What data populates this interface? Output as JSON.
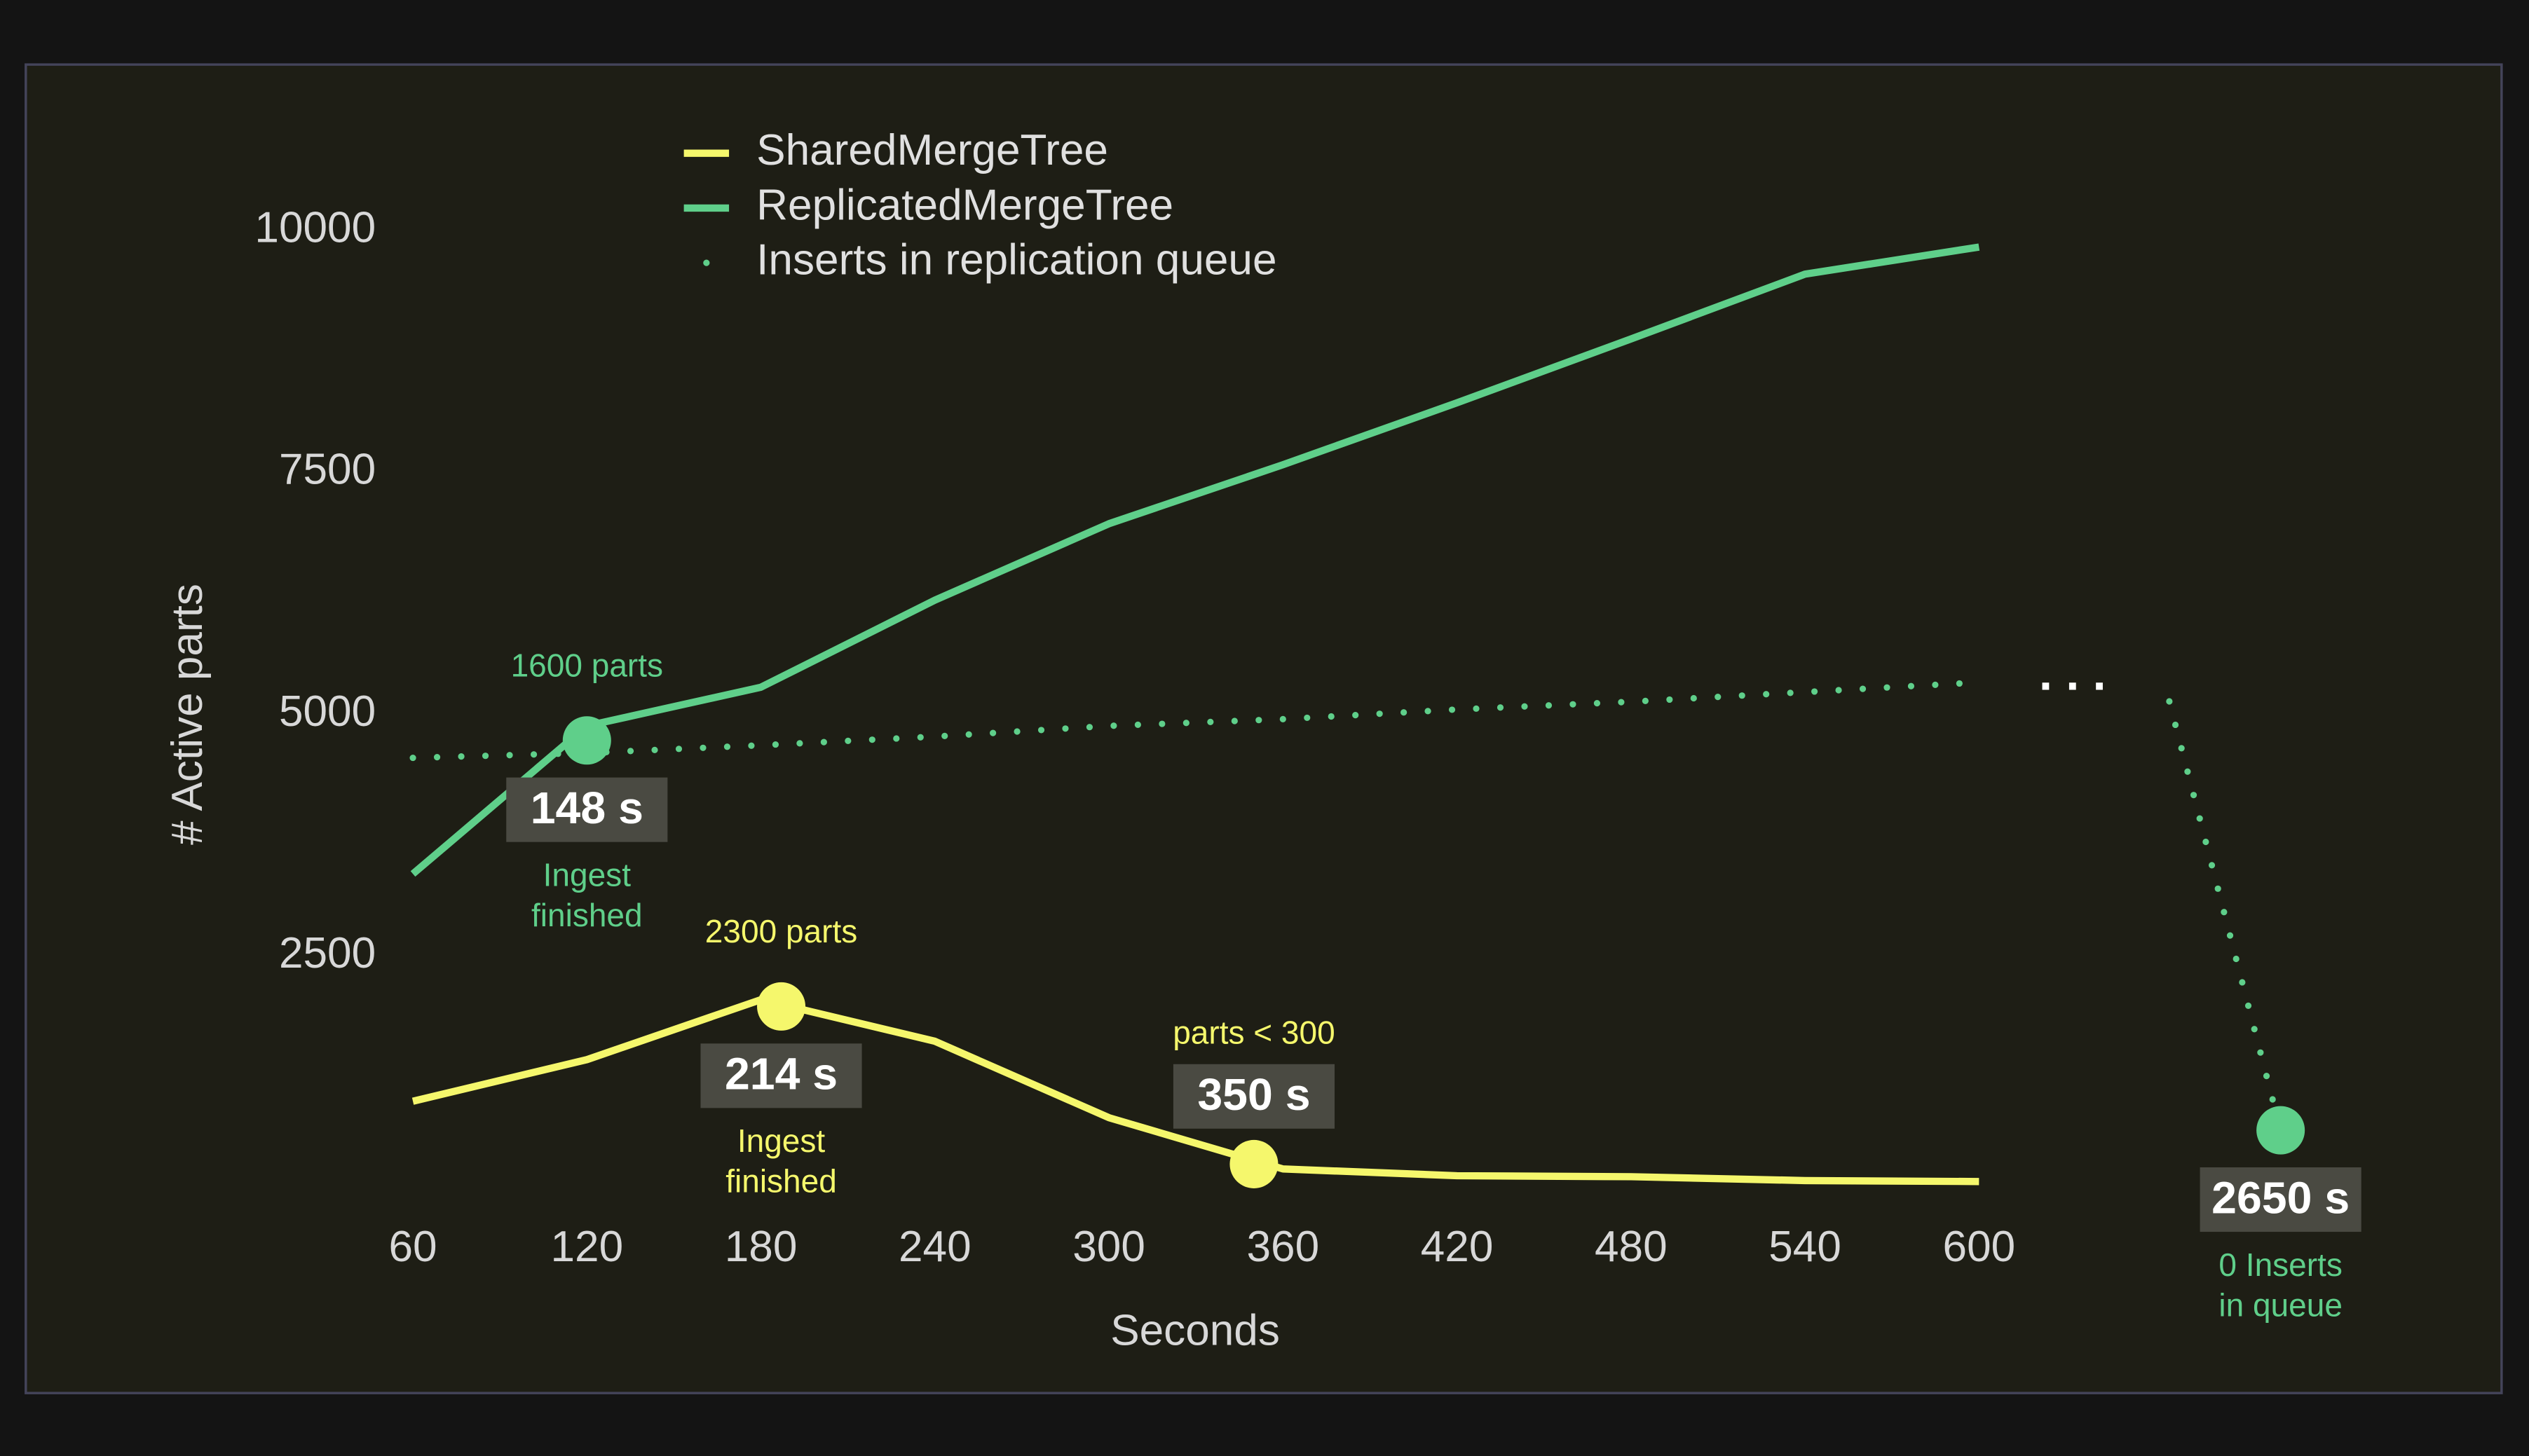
{
  "chart_data": {
    "type": "line",
    "x_label": "Seconds",
    "y_label": "# Active parts",
    "x": [
      60,
      120,
      180,
      240,
      300,
      360,
      420,
      480,
      540,
      600
    ],
    "xlim": [
      60,
      600
    ],
    "xticks": [
      60,
      120,
      180,
      240,
      300,
      360,
      420,
      480,
      540,
      600
    ],
    "ylim": [
      0,
      10500
    ],
    "yticks": [
      2500,
      5000,
      7500,
      10000
    ],
    "grid": false,
    "legend": "top-left",
    "series": [
      {
        "name": "SharedMergeTree",
        "color": "#f5f76c",
        "style": "solid",
        "values": [
          1000,
          1430,
          2050,
          1620,
          830,
          300,
          230,
          220,
          180,
          170
        ]
      },
      {
        "name": "ReplicatedMergeTree",
        "color": "#5fcf8a",
        "style": "solid",
        "values": [
          3350,
          4880,
          5280,
          6180,
          6970,
          7580,
          8220,
          8880,
          9550,
          9830
        ]
      },
      {
        "name": "Inserts in replication queue",
        "color": "#5fcf8a",
        "style": "dotted",
        "values": [
          4550,
          4600,
          4680,
          4770,
          4880,
          4950,
          5050,
          5130,
          5230,
          5330
        ]
      }
    ],
    "annotations": [
      {
        "x": 120,
        "y": 4730,
        "color": "#5fcf8a",
        "label_position": "below",
        "above": "1600 parts",
        "time": "148 s",
        "below": [
          "Ingest",
          "finished"
        ]
      },
      {
        "x": 187,
        "y": 1980,
        "color": "#f5f76c",
        "label_position": "below",
        "above": "2300 parts",
        "time": "214 s",
        "below": [
          "Ingest",
          "finished"
        ]
      },
      {
        "x": 350,
        "y": 350,
        "color": "#f5f76c",
        "label_position": "above",
        "above": "parts < 300",
        "time": "350 s"
      },
      {
        "y": 700,
        "color": "#5fcf8a",
        "label_position": "below",
        "time": "2650 s",
        "below": [
          "0 Inserts",
          "in queue"
        ]
      }
    ]
  }
}
